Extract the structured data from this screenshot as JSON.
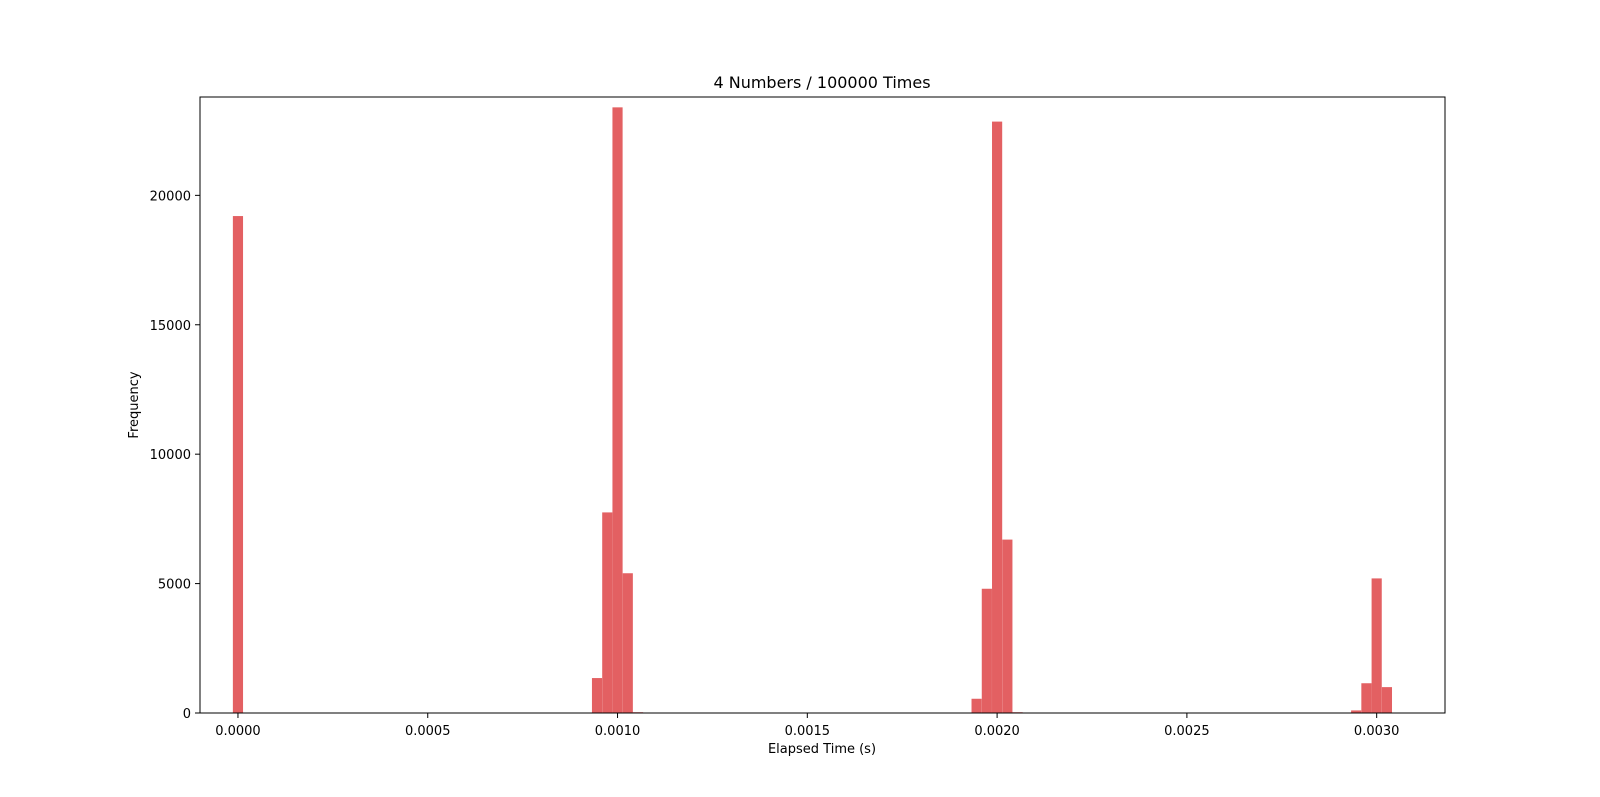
{
  "chart_data": {
    "type": "bar",
    "title": "4 Numbers / 100000 Times",
    "xlabel": "Elapsed Time (s)",
    "ylabel": "Frequency",
    "xlim": [
      -0.0001,
      0.00318
    ],
    "ylim": [
      0,
      23800
    ],
    "grid": false,
    "legend": "none",
    "bar_color": "#e36062",
    "bin_width": 2.68e-05,
    "bins": [
      {
        "x": 0.0,
        "y": 19200
      },
      {
        "x": 0.000946,
        "y": 1350
      },
      {
        "x": 0.000973,
        "y": 7750
      },
      {
        "x": 0.001,
        "y": 23400
      },
      {
        "x": 0.001027,
        "y": 5400
      },
      {
        "x": 0.001054,
        "y": 30
      },
      {
        "x": 0.001946,
        "y": 550
      },
      {
        "x": 0.001973,
        "y": 4800
      },
      {
        "x": 0.002,
        "y": 22850
      },
      {
        "x": 0.002027,
        "y": 6700
      },
      {
        "x": 0.002054,
        "y": 30
      },
      {
        "x": 0.002946,
        "y": 100
      },
      {
        "x": 0.002973,
        "y": 1150
      },
      {
        "x": 0.003,
        "y": 5200
      },
      {
        "x": 0.003027,
        "y": 1000
      }
    ],
    "x_ticks": [
      {
        "value": 0.0,
        "label": "0.0000"
      },
      {
        "value": 0.0005,
        "label": "0.0005"
      },
      {
        "value": 0.001,
        "label": "0.0010"
      },
      {
        "value": 0.0015,
        "label": "0.0015"
      },
      {
        "value": 0.002,
        "label": "0.0020"
      },
      {
        "value": 0.0025,
        "label": "0.0025"
      },
      {
        "value": 0.003,
        "label": "0.0030"
      }
    ],
    "y_ticks": [
      {
        "value": 0,
        "label": "0"
      },
      {
        "value": 5000,
        "label": "5000"
      },
      {
        "value": 10000,
        "label": "10000"
      },
      {
        "value": 15000,
        "label": "15000"
      },
      {
        "value": 20000,
        "label": "20000"
      }
    ]
  }
}
